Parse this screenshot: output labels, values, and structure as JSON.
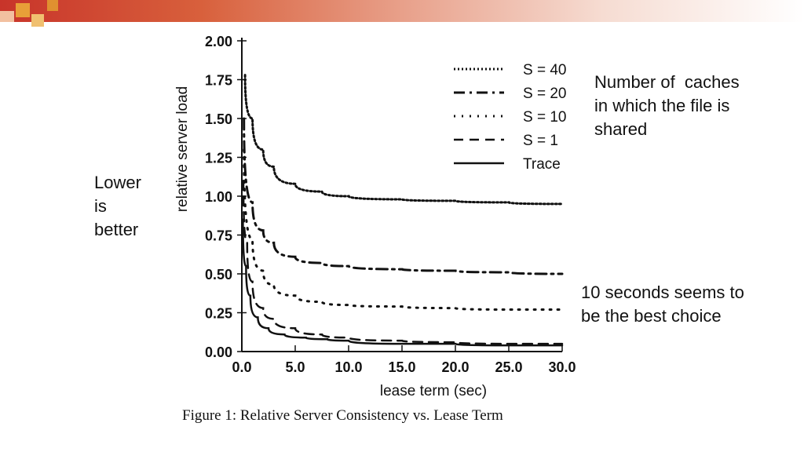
{
  "notes": {
    "lower": [
      "Lower",
      "is",
      "better"
    ],
    "caches": [
      "Number of  caches",
      "in which the file is",
      "shared"
    ],
    "best": [
      "10 seconds seems to",
      "be the best choice"
    ]
  },
  "caption": "Figure 1: Relative Server Consistency vs. Lease Term",
  "colors": {
    "bar_red": "#c8342a",
    "bar_orange": "#e8a038",
    "ink": "#111111"
  },
  "chart_data": {
    "type": "line",
    "xlabel": "lease term (sec)",
    "ylabel": "relative server load",
    "xlim": [
      0,
      30
    ],
    "ylim": [
      0,
      2
    ],
    "xticks": [
      "0.0",
      "5.0",
      "10.0",
      "15.0",
      "20.0",
      "25.0",
      "30.0"
    ],
    "yticks": [
      "0.00",
      "0.25",
      "0.50",
      "0.75",
      "1.00",
      "1.25",
      "1.50",
      "1.75",
      "2.00"
    ],
    "legend_position": "top-right",
    "series": [
      {
        "name": "S = 40",
        "style": "dotted-dense",
        "x": [
          0.3,
          1,
          2,
          3,
          5,
          7.5,
          10,
          15,
          20,
          25,
          30
        ],
        "y": [
          1.78,
          1.5,
          1.3,
          1.19,
          1.08,
          1.03,
          1.0,
          0.98,
          0.97,
          0.96,
          0.95
        ]
      },
      {
        "name": "S = 20",
        "style": "dash-dot",
        "x": [
          0.2,
          1,
          2,
          3,
          5,
          7.5,
          10,
          15,
          20,
          25,
          30
        ],
        "y": [
          1.5,
          0.96,
          0.78,
          0.7,
          0.61,
          0.57,
          0.55,
          0.53,
          0.52,
          0.51,
          0.5
        ]
      },
      {
        "name": "S = 10",
        "style": "dotted-sparse",
        "x": [
          0.2,
          1,
          2,
          3,
          5,
          7.5,
          10,
          15,
          20,
          25,
          30
        ],
        "y": [
          1.3,
          0.72,
          0.52,
          0.43,
          0.36,
          0.32,
          0.3,
          0.29,
          0.28,
          0.27,
          0.27
        ]
      },
      {
        "name": "S = 1",
        "style": "dashed",
        "x": [
          0.15,
          0.5,
          1,
          2,
          3,
          5,
          7.5,
          10,
          15,
          20,
          25,
          30
        ],
        "y": [
          1.1,
          0.7,
          0.45,
          0.28,
          0.21,
          0.15,
          0.11,
          0.09,
          0.07,
          0.06,
          0.05,
          0.05
        ]
      },
      {
        "name": "Trace",
        "style": "solid",
        "x": [
          0.1,
          0.4,
          0.8,
          1.5,
          2.5,
          4,
          6,
          8,
          10,
          15,
          20,
          25,
          30
        ],
        "y": [
          0.85,
          0.55,
          0.36,
          0.22,
          0.15,
          0.11,
          0.09,
          0.08,
          0.07,
          0.05,
          0.05,
          0.04,
          0.04
        ]
      }
    ]
  }
}
